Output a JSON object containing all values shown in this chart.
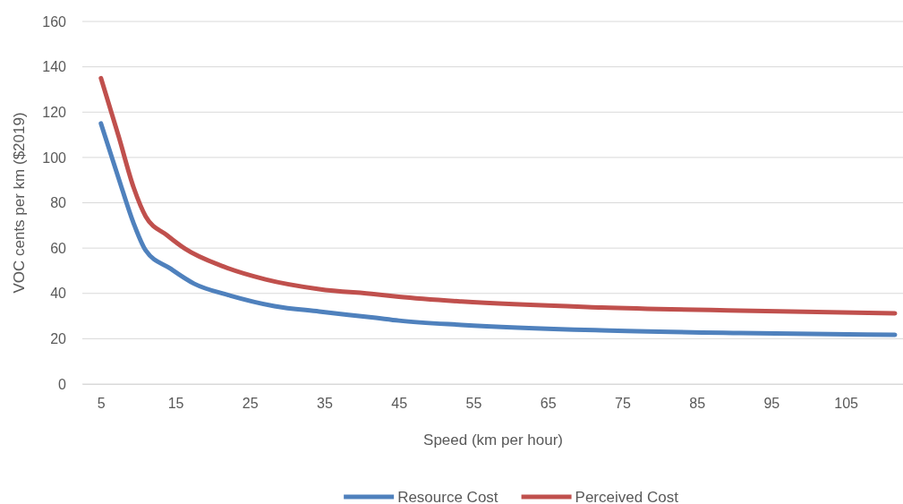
{
  "chart_data": {
    "type": "line",
    "xlabel": "Speed (km per hour)",
    "ylabel": "VOC cents per km ($2019)",
    "xlim": [
      2.5,
      112.8
    ],
    "xticks": [
      5,
      15,
      25,
      35,
      45,
      55,
      65,
      75,
      85,
      95,
      105
    ],
    "ylim": [
      0,
      160
    ],
    "yticks": [
      0,
      20,
      40,
      60,
      80,
      100,
      120,
      140,
      160
    ],
    "grid": "y",
    "legend": "bottom",
    "marker": "none",
    "line_style": "solid",
    "series": [
      {
        "name": "Resource Cost",
        "color": "#4f81bd",
        "x": [
          5,
          7.4,
          9.4,
          11,
          14.3,
          17.5,
          22.3,
          28.3,
          34.3,
          41.9,
          45,
          53.4,
          72.2,
          90.8,
          111.6
        ],
        "values": [
          115,
          90.5,
          70.8,
          59,
          51,
          44.3,
          39.1,
          34.4,
          32,
          29.2,
          28,
          26.1,
          23.7,
          22.5,
          21.7
        ]
      },
      {
        "name": "Perceived Cost",
        "color": "#c0504d",
        "x": [
          5,
          7.4,
          9.4,
          11,
          13.9,
          16.3,
          21.5,
          27.1,
          34.3,
          41.9,
          45,
          53.4,
          72.2,
          90.8,
          111.6
        ],
        "values": [
          135,
          109,
          86.6,
          74,
          65.6,
          59.7,
          51.8,
          46.2,
          41.9,
          39.6,
          38.5,
          36.4,
          33.8,
          32.4,
          31.2
        ]
      }
    ]
  }
}
